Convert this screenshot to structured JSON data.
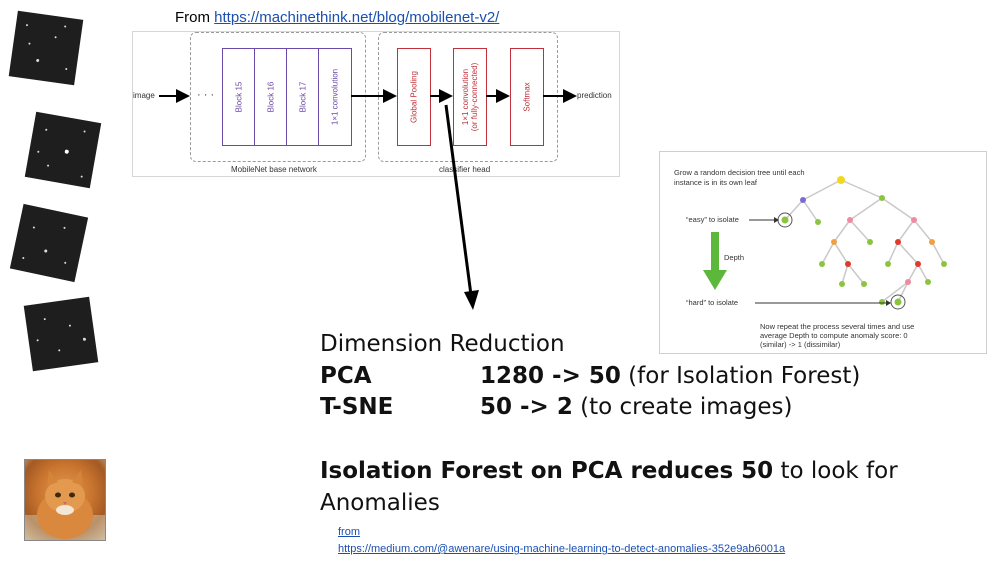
{
  "header": {
    "from_label": "From",
    "source_url": "https://machinethink.net/blog/mobilenet-v2/"
  },
  "mobilenet_diagram": {
    "input_label": "image",
    "ellipsis": "· · ·",
    "base_blocks": [
      "Block 15",
      "Block 16",
      "Block 17",
      "1×1 convolution"
    ],
    "head_blocks": [
      "Global Pooling",
      "1×1 convolution\n(or fully-connected)",
      "Softmax"
    ],
    "output_label": "prediction",
    "base_group_label": "MobileNet base network",
    "head_group_label": "classifier head"
  },
  "isolation_tree": {
    "caption_top": "Grow a random decision tree until each instance is in its own leaf",
    "easy_label": "“easy” to isolate",
    "depth_label": "Depth",
    "hard_label": "“hard” to isolate",
    "caption_bottom": "Now repeat the process several times and use average Depth to compute anomaly score: 0 (similar) -> 1 (dissimilar)",
    "colors": {
      "root": "#f1d81e",
      "green": "#8bc53f",
      "pink": "#f08aa0",
      "orange": "#f0a040",
      "red": "#e03a2a",
      "purple": "#7a6ad8",
      "arrow": "#5cb83a"
    }
  },
  "main_text": {
    "heading": "Dimension Reduction",
    "rows": [
      {
        "method": "PCA",
        "value": "1280 -> 50",
        "note": " (for Isolation Forest)"
      },
      {
        "method": "T-SNE",
        "value": "50 -> 2",
        "note": " (to create images)"
      }
    ],
    "iso_bold": "Isolation Forest on PCA reduces 50",
    "iso_rest": " to look for",
    "iso_line2": "Anomalies"
  },
  "footer": {
    "from_label": "from",
    "source_url": "https://medium.com/@awenare/using-machine-learning-to-detect-anomalies-352e9ab6001a"
  }
}
